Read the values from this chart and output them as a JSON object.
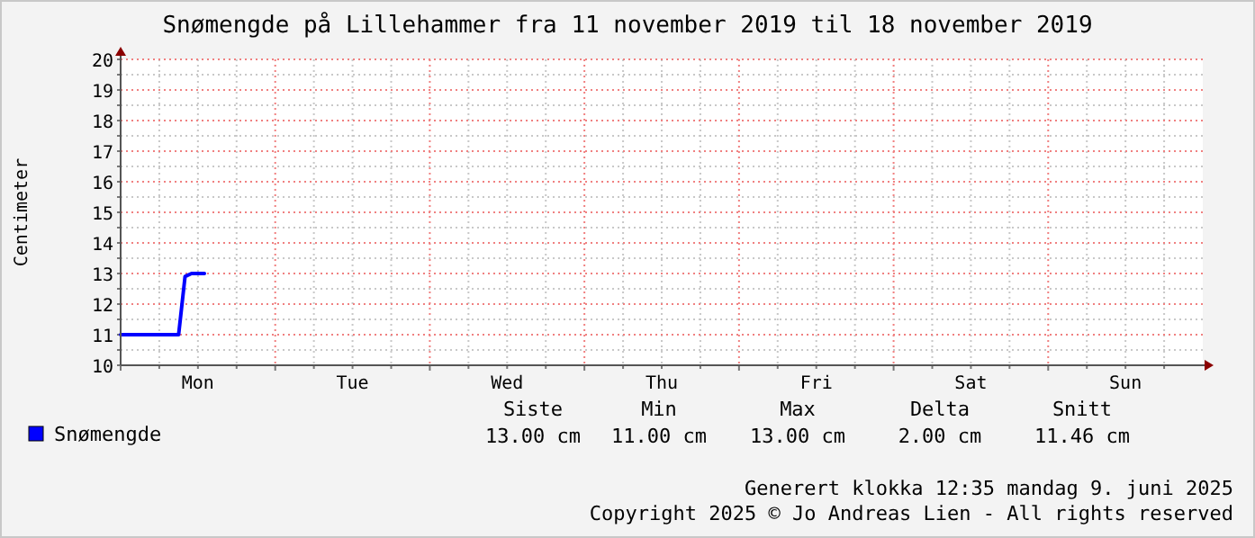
{
  "chart_data": {
    "type": "line",
    "title": "Snømengde på Lillehammer fra 11 november 2019 til 18 november 2019",
    "ylabel": "Centimeter",
    "categories": [
      null,
      null,
      null,
      null,
      null,
      null,
      null,
      null,
      null,
      null,
      null,
      null,
      "Mon",
      null,
      null,
      null,
      null,
      null,
      null,
      null,
      null,
      null,
      null,
      null,
      null,
      null,
      null,
      null,
      null,
      null,
      null,
      null,
      null,
      null,
      null,
      null,
      "Tue",
      null,
      null,
      null,
      null,
      null,
      null,
      null,
      null,
      null,
      null,
      null,
      null,
      null,
      null,
      null,
      null,
      null,
      null,
      null,
      null,
      null,
      null,
      null,
      "Wed",
      null,
      null,
      null,
      null,
      null,
      null,
      null,
      null,
      null,
      null,
      null,
      null,
      null,
      null,
      null,
      null,
      null,
      null,
      null,
      null,
      null,
      null,
      null,
      "Thu",
      null,
      null,
      null,
      null,
      null,
      null,
      null,
      null,
      null,
      null,
      null,
      null,
      null,
      null,
      null,
      null,
      null,
      null,
      null,
      null,
      null,
      null,
      null,
      "Fri",
      null,
      null,
      null,
      null,
      null,
      null,
      null,
      null,
      null,
      null,
      null,
      null,
      null,
      null,
      null,
      null,
      null,
      null,
      null,
      null,
      null,
      null,
      null,
      "Sat",
      null,
      null,
      null,
      null,
      null,
      null,
      null,
      null,
      null,
      null,
      null,
      null,
      null,
      null,
      null,
      null,
      null,
      null,
      null,
      null,
      null,
      null,
      null,
      "Sun",
      null,
      null,
      null,
      null,
      null,
      null,
      null,
      null,
      null,
      null,
      null
    ],
    "series": [
      {
        "name": "Snømengde",
        "color": "#0000ff",
        "values": [
          11.0,
          11.0,
          11.0,
          11.0,
          11.0,
          11.0,
          11.0,
          11.0,
          11.0,
          11.0,
          12.9,
          13.0,
          13.0,
          13.0,
          null,
          null,
          null,
          null,
          null,
          null,
          null,
          null,
          null,
          null,
          null,
          null,
          null,
          null,
          null,
          null,
          null,
          null,
          null,
          null,
          null,
          null,
          null,
          null,
          null,
          null,
          null,
          null,
          null,
          null,
          null,
          null,
          null,
          null,
          null,
          null,
          null,
          null,
          null,
          null,
          null,
          null,
          null,
          null,
          null,
          null,
          null,
          null,
          null,
          null,
          null,
          null,
          null,
          null,
          null,
          null,
          null,
          null,
          null,
          null,
          null,
          null,
          null,
          null,
          null,
          null,
          null,
          null,
          null,
          null,
          null,
          null,
          null,
          null,
          null,
          null,
          null,
          null,
          null,
          null,
          null,
          null,
          null,
          null,
          null,
          null,
          null,
          null,
          null,
          null,
          null,
          null,
          null,
          null,
          null,
          null,
          null,
          null,
          null,
          null,
          null,
          null,
          null,
          null,
          null,
          null,
          null,
          null,
          null,
          null,
          null,
          null,
          null,
          null,
          null,
          null,
          null,
          null,
          null,
          null,
          null,
          null,
          null,
          null,
          null,
          null,
          null,
          null,
          null,
          null,
          null,
          null,
          null,
          null,
          null,
          null,
          null,
          null,
          null,
          null,
          null,
          null,
          null,
          null,
          null,
          null,
          null,
          null,
          null,
          null,
          null,
          null,
          null,
          null
        ]
      }
    ],
    "ylim": [
      10,
      20
    ],
    "yticks": [
      10,
      {
        "value": 10.5,
        "label": null
      },
      11,
      {
        "value": 11.5,
        "label": null
      },
      12,
      {
        "value": 12.5,
        "label": null
      },
      13,
      {
        "value": 13.5,
        "label": null
      },
      14,
      {
        "value": 14.5,
        "label": null
      },
      15,
      {
        "value": 15.5,
        "label": null
      },
      16,
      {
        "value": 16.5,
        "label": null
      },
      17,
      {
        "value": 17.5,
        "label": null
      },
      18,
      {
        "value": 18.5,
        "label": null
      },
      19,
      {
        "value": 19.5,
        "label": null
      },
      20
    ],
    "grid": true,
    "legend": "bottom",
    "marker": "none",
    "line_style": "solid",
    "annotations": [
      "Siste",
      "Min",
      "Max",
      "Delta",
      "Snitt",
      "13.00 cm",
      "11.00 cm",
      "13.00 cm",
      "2.00 cm",
      "11.46 cm",
      "Generert klokka 12:35 mandag 9. juni 2025",
      "Copyright 2025 © Jo Andreas Lien - All rights reserved"
    ]
  }
}
